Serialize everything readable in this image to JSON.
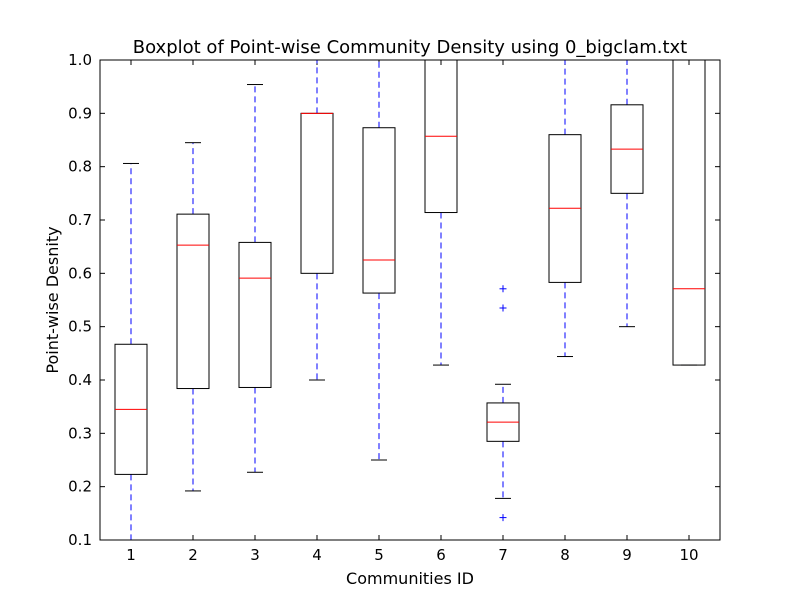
{
  "chart_data": {
    "type": "boxplot",
    "title": "Boxplot of Point-wise Community Density using 0_bigclam.txt",
    "xlabel": "Communities ID",
    "ylabel": "Point-wise Desnity",
    "ylim": [
      0.1,
      1.0
    ],
    "yticks": [
      0.1,
      0.2,
      0.3,
      0.4,
      0.5,
      0.6,
      0.7,
      0.8,
      0.9,
      1.0
    ],
    "ytick_labels": [
      "0.1",
      "0.2",
      "0.3",
      "0.4",
      "0.5",
      "0.6",
      "0.7",
      "0.8",
      "0.9",
      "1.0"
    ],
    "grid": false,
    "colors": {
      "box": "#000000",
      "median": "#ff0000",
      "whisker": "#0000ff",
      "flier": "#0000ff"
    },
    "boxes": [
      {
        "label": "1",
        "whisker_low": 0.1,
        "q1": 0.223,
        "median": 0.345,
        "q3": 0.467,
        "whisker_high": 0.806,
        "fliers": []
      },
      {
        "label": "2",
        "whisker_low": 0.192,
        "q1": 0.384,
        "median": 0.653,
        "q3": 0.711,
        "whisker_high": 0.845,
        "fliers": []
      },
      {
        "label": "3",
        "whisker_low": 0.227,
        "q1": 0.386,
        "median": 0.591,
        "q3": 0.658,
        "whisker_high": 0.954,
        "fliers": []
      },
      {
        "label": "4",
        "whisker_low": 0.4,
        "q1": 0.6,
        "median": 0.9,
        "q3": 0.9,
        "whisker_high": 1.0,
        "fliers": []
      },
      {
        "label": "5",
        "whisker_low": 0.25,
        "q1": 0.563,
        "median": 0.625,
        "q3": 0.873,
        "whisker_high": 1.0,
        "fliers": []
      },
      {
        "label": "6",
        "whisker_low": 0.428,
        "q1": 0.714,
        "median": 0.857,
        "q3": 1.0,
        "whisker_high": 1.0,
        "fliers": []
      },
      {
        "label": "7",
        "whisker_low": 0.178,
        "q1": 0.285,
        "median": 0.321,
        "q3": 0.357,
        "whisker_high": 0.392,
        "fliers": [
          0.571,
          0.535,
          0.142
        ]
      },
      {
        "label": "8",
        "whisker_low": 0.444,
        "q1": 0.583,
        "median": 0.722,
        "q3": 0.86,
        "whisker_high": 1.0,
        "fliers": []
      },
      {
        "label": "9",
        "whisker_low": 0.5,
        "q1": 0.75,
        "median": 0.833,
        "q3": 0.916,
        "whisker_high": 1.0,
        "fliers": []
      },
      {
        "label": "10",
        "whisker_low": 0.428,
        "q1": 0.428,
        "median": 0.571,
        "q3": 1.0,
        "whisker_high": 1.0,
        "fliers": []
      }
    ]
  }
}
